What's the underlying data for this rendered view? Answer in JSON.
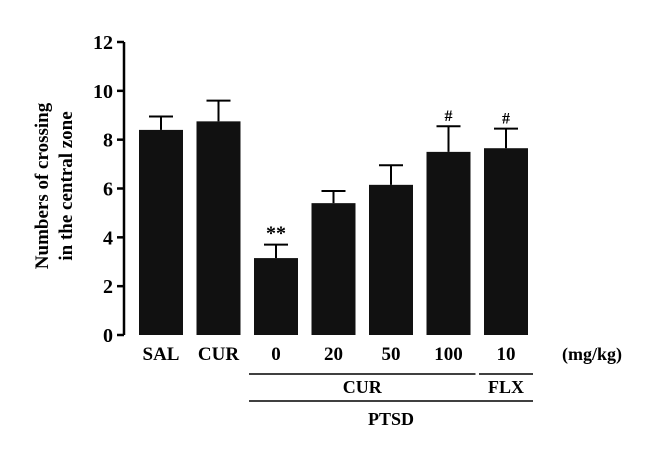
{
  "chart_data": {
    "type": "bar",
    "ylabel_lines": [
      "Numbers of crossing",
      "in the central zone"
    ],
    "ylim": [
      0,
      12
    ],
    "yticks": [
      0,
      2,
      4,
      6,
      8,
      10,
      12
    ],
    "categories": [
      "SAL",
      "CUR",
      "0",
      "20",
      "50",
      "100",
      "10"
    ],
    "values": [
      8.4,
      8.75,
      3.15,
      5.4,
      6.15,
      7.5,
      7.65
    ],
    "errors": [
      0.55,
      0.85,
      0.55,
      0.5,
      0.8,
      1.05,
      0.8
    ],
    "annotations": [
      "",
      "",
      "**",
      "",
      "",
      "#",
      "#"
    ],
    "unit_label": "(mg/kg)",
    "groups": [
      {
        "label": "CUR",
        "from": 2,
        "to": 5
      },
      {
        "label": "FLX",
        "from": 6,
        "to": 6
      }
    ],
    "outer_group": {
      "label": "PTSD",
      "from": 2,
      "to": 6
    },
    "bar_color": "#111111",
    "grid": false
  }
}
